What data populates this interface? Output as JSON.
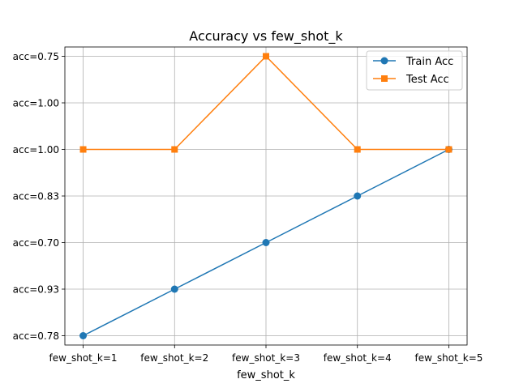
{
  "chart_data": {
    "type": "line",
    "title": "Accuracy vs few_shot_k",
    "xlabel": "few_shot_k",
    "ylabel": "",
    "categories": [
      "few_shot_k=1",
      "few_shot_k=2",
      "few_shot_k=3",
      "few_shot_k=4",
      "few_shot_k=5"
    ],
    "y_categories": [
      "acc=0.78",
      "acc=0.93",
      "acc=0.70",
      "acc=0.83",
      "acc=1.00",
      "acc=1.00",
      "acc=0.75"
    ],
    "grid": true,
    "legend_position": "top-right",
    "series": [
      {
        "name": "Train Acc",
        "color": "#1f77b4",
        "marker": "circle",
        "values": [
          "acc=0.78",
          "acc=0.93",
          "acc=0.70",
          "acc=0.83",
          "acc=1.00"
        ]
      },
      {
        "name": "Test Acc",
        "color": "#ff7f0e",
        "marker": "square",
        "values": [
          "acc=1.00",
          "acc=1.00",
          "acc=0.75",
          "acc=1.00",
          "acc=1.00"
        ]
      }
    ]
  }
}
